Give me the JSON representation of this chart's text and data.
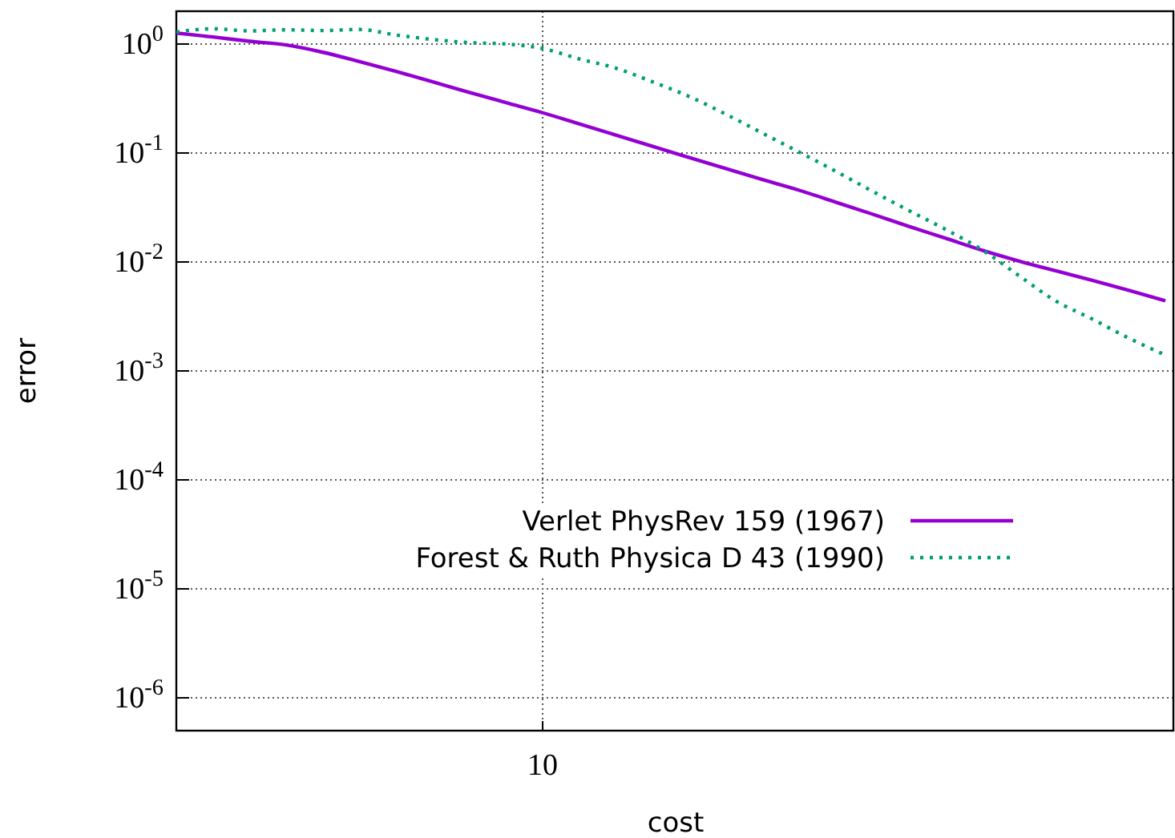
{
  "chart_data": {
    "type": "line",
    "xlabel": "cost",
    "ylabel": "error",
    "log": "y",
    "grid": true,
    "legend": "right",
    "categories": [
      null,
      null,
      null,
      null,
      null,
      null,
      null,
      null,
      null,
      null,
      "10",
      null,
      null,
      null,
      null,
      null,
      null,
      null,
      null,
      null,
      null,
      null,
      null,
      null,
      null,
      null,
      null,
      null
    ],
    "ylim": [
      5e-07,
      2
    ],
    "yticks": [
      {
        "value": 1,
        "label": "10$^{0}$"
      },
      {
        "value": 0.1,
        "label": "10$^{-1}$"
      },
      {
        "value": 0.01,
        "label": "10$^{-2}$"
      },
      {
        "value": 0.001,
        "label": "10$^{-3}$"
      },
      {
        "value": 0.0001,
        "label": "10$^{-4}$"
      },
      {
        "value": 1e-05,
        "label": "10$^{-5}$"
      },
      {
        "value": 1e-06,
        "label": "10$^{-6}$"
      }
    ],
    "series": [
      {
        "name": "Verlet PhysRev 159 (1967)",
        "color": "#9400d3",
        "line_style": "solid",
        "values": [
          1.26,
          1.16,
          1.06,
          0.98,
          0.84,
          0.69,
          0.56,
          0.45,
          0.36,
          0.29,
          0.234,
          0.185,
          0.146,
          0.115,
          0.091,
          0.072,
          0.057,
          0.0455,
          0.0354,
          0.0275,
          0.0212,
          0.0165,
          0.0128,
          0.0102,
          0.0083,
          0.0068,
          0.0055,
          0.0044
        ]
      },
      {
        "name": "Forest & Ruth Physica D 43 (1990)",
        "color": "#009e73",
        "line_style": "dotted",
        "values": [
          1.29,
          1.38,
          1.32,
          1.35,
          1.33,
          1.36,
          1.21,
          1.1,
          1.03,
          1.0,
          0.91,
          0.73,
          0.6,
          0.45,
          0.33,
          0.227,
          0.152,
          0.102,
          0.068,
          0.0446,
          0.0296,
          0.0199,
          0.0129,
          0.0075,
          0.0044,
          0.003,
          0.002,
          0.0014
        ]
      }
    ]
  }
}
